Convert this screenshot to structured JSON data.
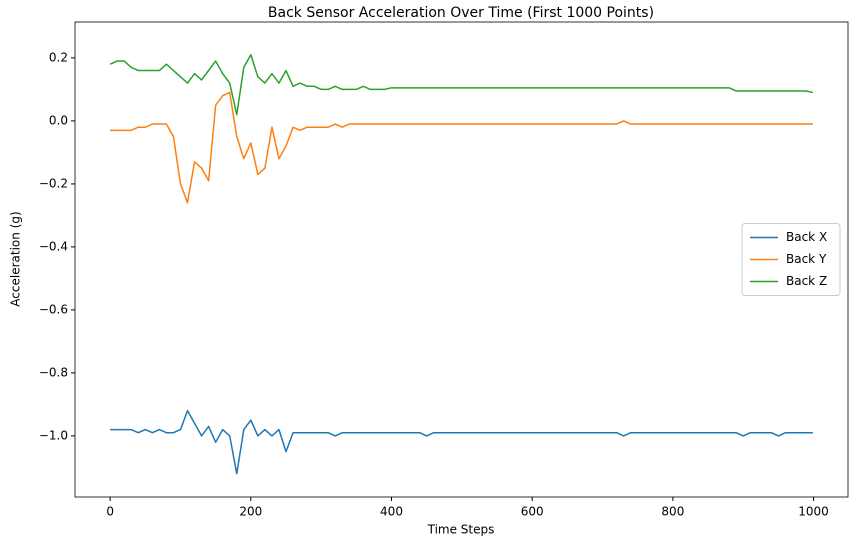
{
  "chart_data": {
    "type": "line",
    "title": "Back Sensor Acceleration Over Time (First 1000 Points)",
    "x_label": "Time Steps",
    "y_label": "Acceleration (g)",
    "x": [
      0,
      10,
      20,
      30,
      40,
      50,
      60,
      70,
      80,
      90,
      100,
      110,
      120,
      130,
      140,
      150,
      160,
      170,
      180,
      190,
      200,
      210,
      220,
      230,
      240,
      250,
      260,
      270,
      280,
      290,
      300,
      310,
      320,
      330,
      340,
      350,
      360,
      370,
      380,
      390,
      400,
      410,
      420,
      430,
      440,
      450,
      460,
      470,
      480,
      490,
      500,
      510,
      520,
      530,
      540,
      550,
      560,
      570,
      580,
      590,
      600,
      610,
      620,
      630,
      640,
      650,
      660,
      670,
      680,
      690,
      700,
      710,
      720,
      730,
      740,
      750,
      760,
      770,
      780,
      790,
      800,
      810,
      820,
      830,
      840,
      850,
      860,
      870,
      880,
      890,
      900,
      910,
      920,
      930,
      940,
      950,
      960,
      970,
      980,
      990,
      999
    ],
    "series": [
      {
        "name": "Back X",
        "color": "#1f77b4",
        "values": [
          -0.98,
          -0.98,
          -0.98,
          -0.98,
          -0.99,
          -0.98,
          -0.99,
          -0.98,
          -0.99,
          -0.99,
          -0.98,
          -0.92,
          -0.96,
          -1.0,
          -0.97,
          -1.02,
          -0.98,
          -1.0,
          -1.12,
          -0.98,
          -0.95,
          -1.0,
          -0.98,
          -1.0,
          -0.98,
          -1.05,
          -0.99,
          -0.99,
          -0.99,
          -0.99,
          -0.99,
          -0.99,
          -1.0,
          -0.99,
          -0.99,
          -0.99,
          -0.99,
          -0.99,
          -0.99,
          -0.99,
          -0.99,
          -0.99,
          -0.99,
          -0.99,
          -0.99,
          -1.0,
          -0.99,
          -0.99,
          -0.99,
          -0.99,
          -0.99,
          -0.99,
          -0.99,
          -0.99,
          -0.99,
          -0.99,
          -0.99,
          -0.99,
          -0.99,
          -0.99,
          -0.99,
          -0.99,
          -0.99,
          -0.99,
          -0.99,
          -0.99,
          -0.99,
          -0.99,
          -0.99,
          -0.99,
          -0.99,
          -0.99,
          -0.99,
          -1.0,
          -0.99,
          -0.99,
          -0.99,
          -0.99,
          -0.99,
          -0.99,
          -0.99,
          -0.99,
          -0.99,
          -0.99,
          -0.99,
          -0.99,
          -0.99,
          -0.99,
          -0.99,
          -0.99,
          -1.0,
          -0.99,
          -0.99,
          -0.99,
          -0.99,
          -1.0,
          -0.99,
          -0.99,
          -0.99,
          -0.99,
          -0.99
        ]
      },
      {
        "name": "Back Y",
        "color": "#ff7f0e",
        "values": [
          -0.03,
          -0.03,
          -0.03,
          -0.03,
          -0.02,
          -0.02,
          -0.01,
          -0.01,
          -0.01,
          -0.05,
          -0.2,
          -0.26,
          -0.13,
          -0.15,
          -0.19,
          0.05,
          0.08,
          0.09,
          -0.05,
          -0.12,
          -0.07,
          -0.17,
          -0.15,
          -0.02,
          -0.12,
          -0.08,
          -0.02,
          -0.03,
          -0.02,
          -0.02,
          -0.02,
          -0.02,
          -0.01,
          -0.02,
          -0.01,
          -0.01,
          -0.01,
          -0.01,
          -0.01,
          -0.01,
          -0.01,
          -0.01,
          -0.01,
          -0.01,
          -0.01,
          -0.01,
          -0.01,
          -0.01,
          -0.01,
          -0.01,
          -0.01,
          -0.01,
          -0.01,
          -0.01,
          -0.01,
          -0.01,
          -0.01,
          -0.01,
          -0.01,
          -0.01,
          -0.01,
          -0.01,
          -0.01,
          -0.01,
          -0.01,
          -0.01,
          -0.01,
          -0.01,
          -0.01,
          -0.01,
          -0.01,
          -0.01,
          -0.01,
          0.0,
          -0.01,
          -0.01,
          -0.01,
          -0.01,
          -0.01,
          -0.01,
          -0.01,
          -0.01,
          -0.01,
          -0.01,
          -0.01,
          -0.01,
          -0.01,
          -0.01,
          -0.01,
          -0.01,
          -0.01,
          -0.01,
          -0.01,
          -0.01,
          -0.01,
          -0.01,
          -0.01,
          -0.01,
          -0.01,
          -0.01,
          -0.01
        ]
      },
      {
        "name": "Back Z",
        "color": "#2ca02c",
        "values": [
          0.18,
          0.19,
          0.19,
          0.17,
          0.16,
          0.16,
          0.16,
          0.16,
          0.18,
          0.16,
          0.14,
          0.12,
          0.15,
          0.13,
          0.16,
          0.19,
          0.15,
          0.12,
          0.02,
          0.17,
          0.21,
          0.14,
          0.12,
          0.15,
          0.12,
          0.16,
          0.11,
          0.12,
          0.11,
          0.11,
          0.1,
          0.1,
          0.11,
          0.1,
          0.1,
          0.1,
          0.11,
          0.1,
          0.1,
          0.1,
          0.105,
          0.105,
          0.105,
          0.105,
          0.105,
          0.105,
          0.105,
          0.105,
          0.105,
          0.105,
          0.105,
          0.105,
          0.105,
          0.105,
          0.105,
          0.105,
          0.105,
          0.105,
          0.105,
          0.105,
          0.105,
          0.105,
          0.105,
          0.105,
          0.105,
          0.105,
          0.105,
          0.105,
          0.105,
          0.105,
          0.105,
          0.105,
          0.105,
          0.105,
          0.105,
          0.105,
          0.105,
          0.105,
          0.105,
          0.105,
          0.105,
          0.105,
          0.105,
          0.105,
          0.105,
          0.105,
          0.105,
          0.105,
          0.105,
          0.095,
          0.095,
          0.095,
          0.095,
          0.095,
          0.095,
          0.095,
          0.095,
          0.095,
          0.095,
          0.095,
          0.09
        ]
      }
    ],
    "xlim": [
      -49.95,
      1048.95
    ],
    "xticks": [
      0,
      200,
      400,
      600,
      800,
      1000
    ],
    "ylim": [
      -1.194,
      0.314
    ],
    "yticks": [
      {
        "value": -1.0,
        "label": "−1.0"
      },
      {
        "value": -0.8,
        "label": "−0.8"
      },
      {
        "value": -0.6,
        "label": "−0.6"
      },
      {
        "value": -0.4,
        "label": "−0.4"
      },
      {
        "value": -0.2,
        "label": "−0.2"
      },
      {
        "value": 0.0,
        "label": "0.0"
      },
      {
        "value": 0.2,
        "label": "0.2"
      }
    ],
    "legend": "center right"
  }
}
